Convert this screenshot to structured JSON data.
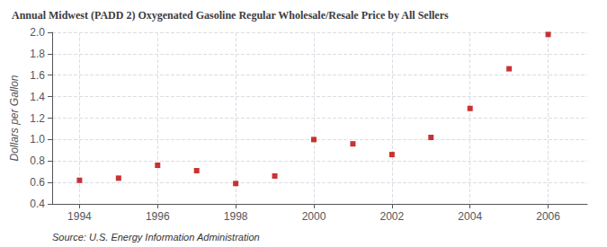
{
  "chart_data": {
    "type": "scatter",
    "title": "Annual Midwest (PADD 2) Oxygenated Gasoline Regular Wholesale/Resale Price by All Sellers",
    "ylabel": "Dollars per Gallon",
    "annotation": "Source: U.S. Energy Information Administration",
    "x": [
      1994,
      1995,
      1996,
      1997,
      1998,
      1999,
      2000,
      2001,
      2002,
      2003,
      2004,
      2005,
      2006
    ],
    "values": [
      0.62,
      0.64,
      0.76,
      0.71,
      0.59,
      0.66,
      1.0,
      0.96,
      0.86,
      1.02,
      1.29,
      1.66,
      1.98
    ],
    "color": "#bb0000",
    "marker": "square",
    "xlim": [
      1993.3,
      2007.0
    ],
    "ylim": [
      0.4,
      2.0
    ],
    "xticks": [
      1994,
      1996,
      1998,
      2000,
      2002,
      2004,
      2006
    ],
    "yticks": [
      0.4,
      0.6,
      0.8,
      {
        "value": 1.0,
        "label": "1.0"
      },
      1.2,
      1.4,
      1.6,
      1.8,
      {
        "value": 2.0,
        "label": "2.0"
      }
    ],
    "grid": true
  }
}
